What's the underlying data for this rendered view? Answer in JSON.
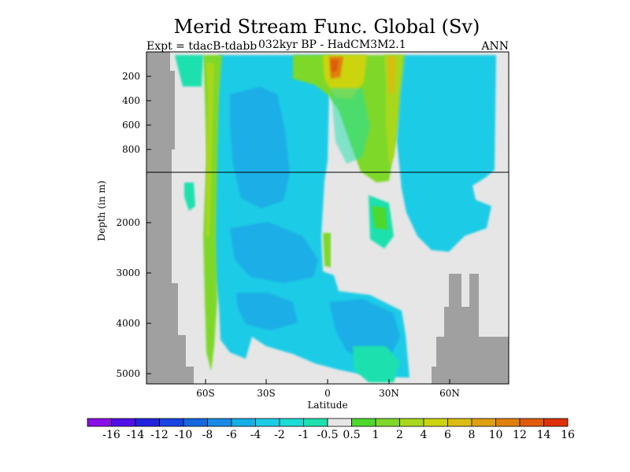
{
  "chart_data": {
    "type": "heatmap",
    "title": "Merid Stream Func. Global (Sv)",
    "subtitle_left": "Expt = tdacB-tdabb",
    "subtitle_center": "032kyr BP - HadCM3M2.1",
    "subtitle_right": "ANN",
    "xlabel": "Latitude",
    "ylabel": "Depth (in m)",
    "x_ticks": [
      "60S",
      "30S",
      "0",
      "30N",
      "60N"
    ],
    "x_tick_values": [
      -60,
      -30,
      0,
      30,
      60
    ],
    "xlim": [
      -88,
      88
    ],
    "y_ticks_upper": [
      "200",
      "400",
      "600",
      "800"
    ],
    "y_tick_values_upper": [
      200,
      400,
      600,
      800
    ],
    "y_ticks_lower": [
      "2000",
      "3000",
      "4000",
      "5000"
    ],
    "y_tick_values_lower": [
      2000,
      3000,
      4000,
      5000
    ],
    "ylim": [
      0,
      5200
    ],
    "axis_break_depth": 1000,
    "colorbar": {
      "labels": [
        "-16",
        "-14",
        "-12",
        "-10",
        "-8",
        "-6",
        "-4",
        "-2",
        "-1",
        "-0.5",
        "0.5",
        "1",
        "2",
        "4",
        "6",
        "8",
        "10",
        "12",
        "14",
        "16"
      ],
      "colors": [
        "#8a0ee6",
        "#5010e6",
        "#2222e0",
        "#1844e2",
        "#1666e0",
        "#1a8ae6",
        "#16aee6",
        "#1ccce6",
        "#1cdcd6",
        "#1ee0ae",
        "#e6e6e6",
        "#4ed82e",
        "#7ed82a",
        "#a8d81c",
        "#ccd410",
        "#dcbc10",
        "#e0a00e",
        "#e0800c",
        "#e05c0c",
        "#de3008"
      ]
    },
    "background_color": "#e6e6e6",
    "land_color": "#a0a0a0",
    "summary_values_sv": {
      "southern_ocean_deep_cell": -4,
      "southern_ocean_60S_column": 4,
      "equatorial_surface_max": 14,
      "nh_upper_cell": 6,
      "nh_upper_cell_core": 10,
      "deep_interior": -3,
      "abyssal_equatorial_cell": -2
    }
  }
}
